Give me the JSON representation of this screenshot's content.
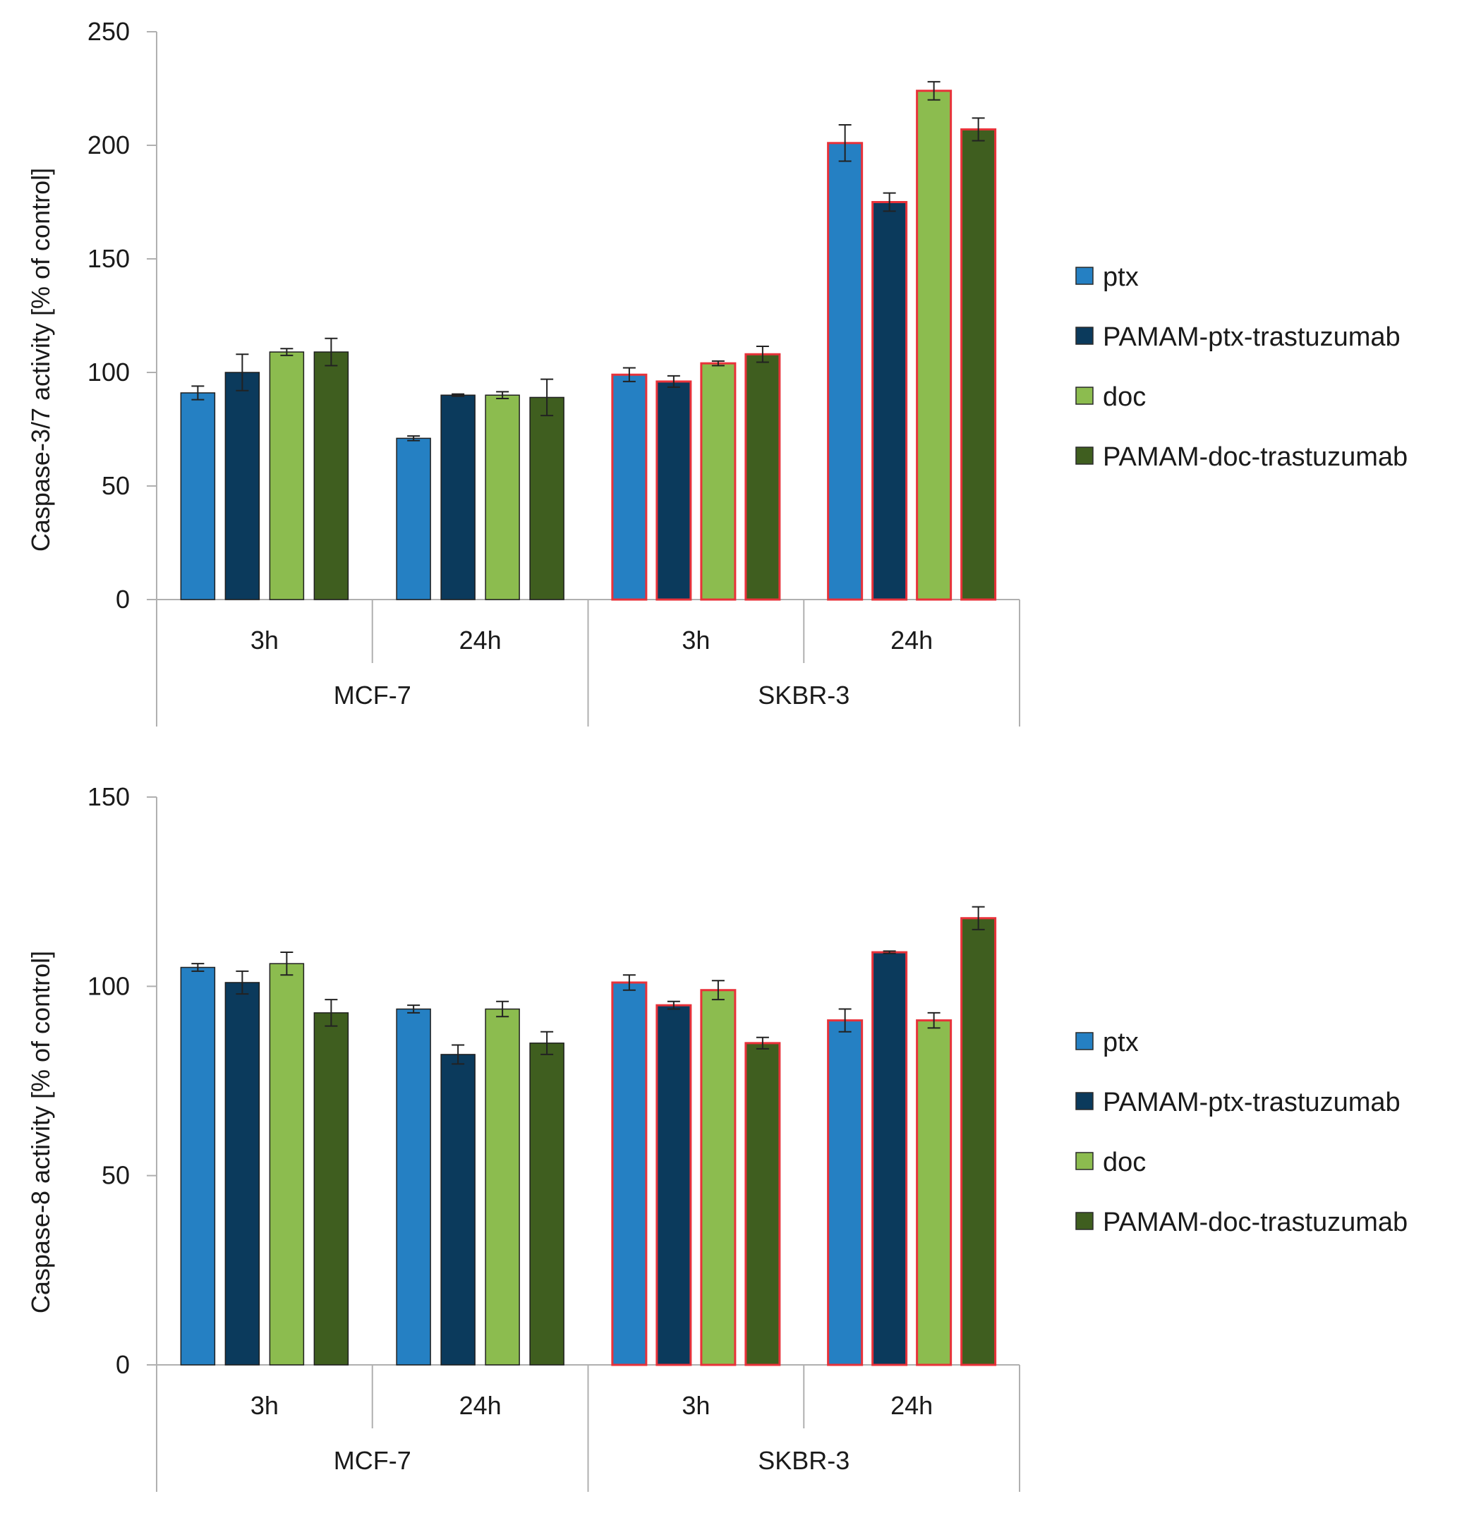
{
  "colors": {
    "ptx": "#2580c3",
    "pamam_ptx": "#0b3a5c",
    "doc": "#8cbc4f",
    "pamam_doc": "#3f5e1f",
    "skbr_outline": "#e8323a",
    "axis": "#b0b0b0",
    "error_bar": "#222222"
  },
  "chart_data": [
    {
      "type": "bar",
      "title": "",
      "ylabel": "Caspase-3/7 activity [% of control]",
      "xlabel": "",
      "ylim": [
        0,
        250
      ],
      "yticks": [
        0,
        50,
        100,
        150,
        200,
        250
      ],
      "groups": [
        {
          "cell_line": "MCF-7",
          "times": [
            "3h",
            "24h"
          ]
        },
        {
          "cell_line": "SKBR-3",
          "times": [
            "3h",
            "24h"
          ]
        }
      ],
      "categories": [
        "3h",
        "24h",
        "3h",
        "24h"
      ],
      "series": [
        {
          "name": "ptx",
          "color_key": "ptx",
          "values": [
            91,
            71,
            99,
            201
          ],
          "errors": [
            3,
            1,
            3,
            8
          ]
        },
        {
          "name": "PAMAM-ptx-trastuzumab",
          "color_key": "pamam_ptx",
          "values": [
            100,
            90,
            96,
            175
          ],
          "errors": [
            8,
            0.5,
            2.5,
            4
          ]
        },
        {
          "name": "doc",
          "color_key": "doc",
          "values": [
            109,
            90,
            104,
            224
          ],
          "errors": [
            1.5,
            1.5,
            1,
            4
          ]
        },
        {
          "name": "PAMAM-doc-trastuzumab",
          "color_key": "pamam_doc",
          "values": [
            109,
            89,
            108,
            207
          ],
          "errors": [
            6,
            8,
            3.5,
            5
          ]
        }
      ],
      "legend_position": "right"
    },
    {
      "type": "bar",
      "title": "",
      "ylabel": "Caspase-8 activity [% of control]",
      "xlabel": "",
      "ylim": [
        0,
        150
      ],
      "yticks": [
        0,
        50,
        100,
        150
      ],
      "groups": [
        {
          "cell_line": "MCF-7",
          "times": [
            "3h",
            "24h"
          ]
        },
        {
          "cell_line": "SKBR-3",
          "times": [
            "3h",
            "24h"
          ]
        }
      ],
      "categories": [
        "3h",
        "24h",
        "3h",
        "24h"
      ],
      "series": [
        {
          "name": "ptx",
          "color_key": "ptx",
          "values": [
            105,
            94,
            101,
            91
          ],
          "errors": [
            1,
            1,
            2,
            3
          ]
        },
        {
          "name": "PAMAM-ptx-trastuzumab",
          "color_key": "pamam_ptx",
          "values": [
            101,
            82,
            95,
            109
          ],
          "errors": [
            3,
            2.5,
            1,
            0.3
          ]
        },
        {
          "name": "doc",
          "color_key": "doc",
          "values": [
            106,
            94,
            99,
            91
          ],
          "errors": [
            3,
            2,
            2.5,
            2
          ]
        },
        {
          "name": "PAMAM-doc-trastuzumab",
          "color_key": "pamam_doc",
          "values": [
            93,
            85,
            85,
            118
          ],
          "errors": [
            3.5,
            3,
            1.5,
            3
          ]
        }
      ],
      "legend_position": "right"
    }
  ]
}
